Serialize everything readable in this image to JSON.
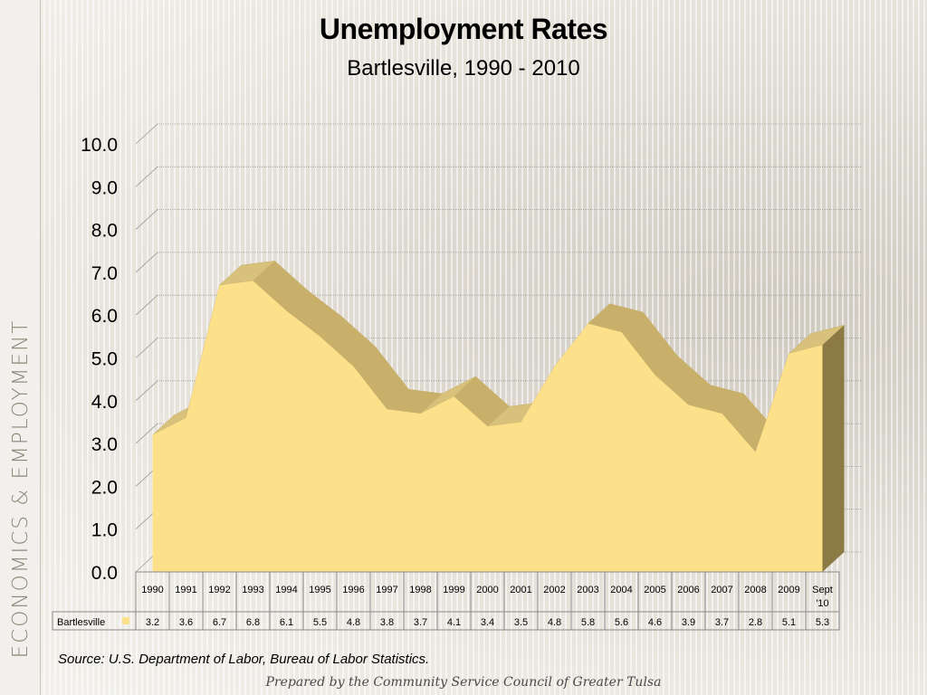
{
  "sidebar": {
    "label": "ECONOMICS & EMPLOYMENT"
  },
  "footer": {
    "source": "Source:  U.S. Department of Labor, Bureau of Labor Statistics.",
    "prepared": "Prepared by the Community Service Council of Greater Tulsa"
  },
  "colors": {
    "area_fill": "#fde08a",
    "area_side": "#c8b06a",
    "area_dark": "#8c7a45",
    "grid": "#9a9a9a"
  },
  "chart_data": {
    "type": "area",
    "title": "Unemployment Rates",
    "subtitle": "Bartlesville, 1990 - 2010",
    "categories": [
      "1990",
      "1991",
      "1992",
      "1993",
      "1994",
      "1995",
      "1996",
      "1997",
      "1998",
      "1999",
      "2000",
      "2001",
      "2002",
      "2003",
      "2004",
      "2005",
      "2006",
      "2007",
      "2008",
      "2009",
      "Sept '10"
    ],
    "series": [
      {
        "name": "Bartlesville",
        "values": [
          3.2,
          3.6,
          6.7,
          6.8,
          6.1,
          5.5,
          4.8,
          3.8,
          3.7,
          4.1,
          3.4,
          3.5,
          4.8,
          5.8,
          5.6,
          4.6,
          3.9,
          3.7,
          2.8,
          5.1,
          5.3
        ]
      }
    ],
    "ylim": [
      0,
      10
    ],
    "yticks": [
      "0.0",
      "1.0",
      "2.0",
      "3.0",
      "4.0",
      "5.0",
      "6.0",
      "7.0",
      "8.0",
      "9.0",
      "10.0"
    ],
    "grid": true,
    "legend": "data-table",
    "data_table": true
  }
}
